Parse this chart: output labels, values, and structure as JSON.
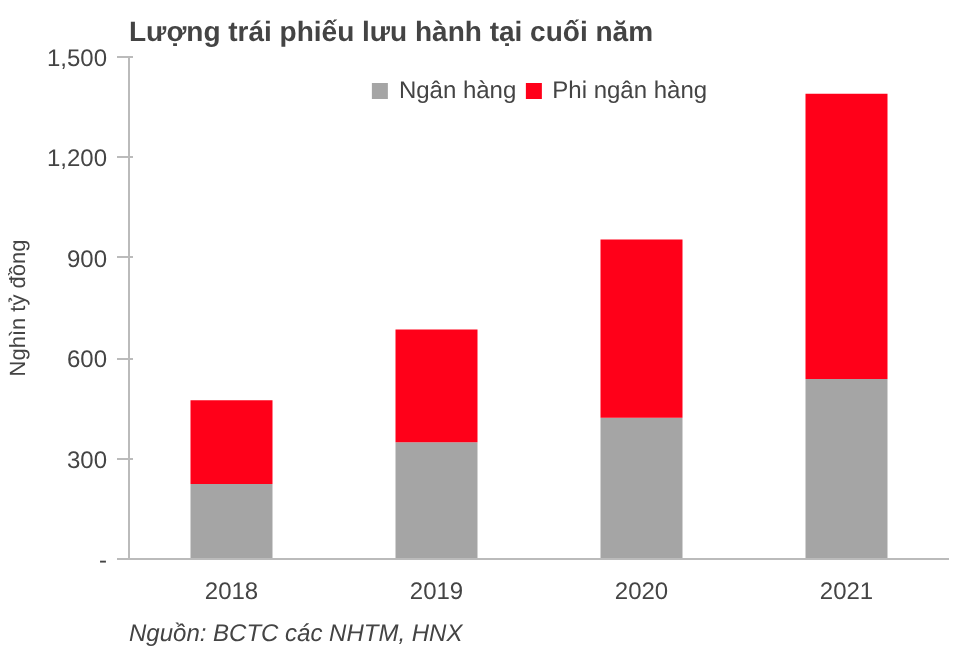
{
  "chart_data": {
    "type": "bar",
    "title": "Lượng trái phiếu lưu hành tại cuối năm",
    "ylabel": "Nghìn tỷ đồng",
    "categories": [
      "2018",
      "2019",
      "2020",
      "2021"
    ],
    "series": [
      {
        "name": "Ngân hàng",
        "color": "#a5a5a5",
        "values": [
          224,
          349,
          422,
          538
        ]
      },
      {
        "name": "Phi ngân hàng",
        "color": "#ff0019",
        "values": [
          250,
          337,
          533,
          852
        ]
      }
    ],
    "stacked": true,
    "ylim": [
      0,
      1500
    ],
    "yticks": [
      {
        "value": 0,
        "label": "-"
      },
      300,
      600,
      900,
      {
        "value": 1200,
        "label": "1,200"
      },
      {
        "value": 1500,
        "label": "1,500"
      }
    ],
    "grid": false,
    "legend": "top",
    "annotations": [
      "Nguồn: BCTC các NHTM, HNX"
    ]
  }
}
